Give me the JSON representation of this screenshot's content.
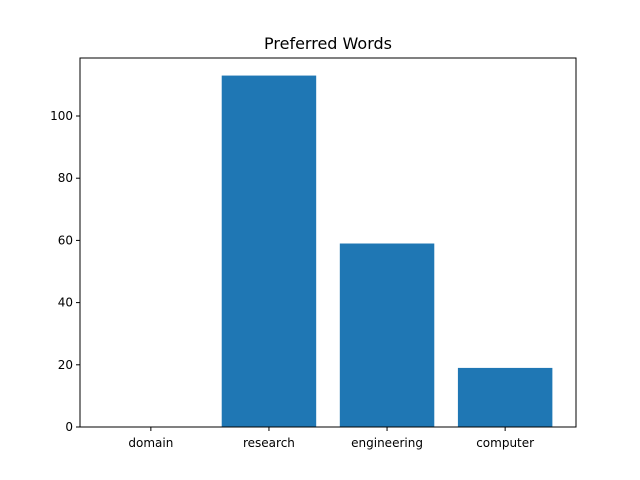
{
  "chart_data": {
    "type": "bar",
    "title": "Preferred Words",
    "xlabel": "",
    "ylabel": "",
    "categories": [
      "domain",
      "research",
      "engineering",
      "computer"
    ],
    "values": [
      0,
      113,
      59,
      19
    ],
    "ylim": [
      0,
      118.65
    ],
    "yticks": [
      0,
      20,
      40,
      60,
      80,
      100
    ],
    "bar_color": "#1f77b4",
    "grid": false,
    "legend": "none"
  }
}
